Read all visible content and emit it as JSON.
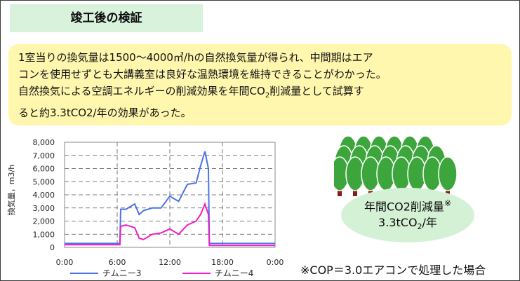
{
  "header": {
    "title": "竣工後の検証"
  },
  "summary": {
    "lines": [
      "1室当りの換気量は1500〜4000㎥/hの自然換気量が得られ、中間期はエア",
      "コンを使用せずとも大講義室は良好な温熱環境を維持できることがわかった。",
      "自然換気による空調エネルギーの削減効果を年間CO",
      "2",
      "削減量として試算す",
      "ると約3.3tCO2/年の効果があった。"
    ]
  },
  "co2_badge": {
    "line1": "年間CO2削減量",
    "mark": "※",
    "value_prefix": "3.3tCO",
    "value_sub": "2",
    "value_suffix": "/年"
  },
  "footnote": "※COP＝3.0エアコンで処理した場合",
  "colors": {
    "chimney3": "#4a73e8",
    "chimney4": "#f01ec8",
    "tree_green": "#3ca63c",
    "trunk": "#8b1a1a"
  },
  "chart_data": {
    "type": "line",
    "ylabel": "換気量，m3/h",
    "xlabel": "",
    "ylim": [
      0,
      8000
    ],
    "yticks": [
      "0",
      "1,000",
      "2,000",
      "3,000",
      "4,000",
      "5,000",
      "6,000",
      "7,000",
      "8,000"
    ],
    "xticks": [
      "0:00",
      "6:00",
      "12:00",
      "18:00",
      "0:00"
    ],
    "grid": true,
    "series": [
      {
        "name": "チムニー3",
        "x": [
          0,
          3,
          6.3,
          6.4,
          7,
          8,
          8.5,
          9,
          10,
          11,
          12,
          13,
          14,
          15,
          15.5,
          16,
          16.4,
          16.5,
          17,
          20,
          24
        ],
        "values": [
          300,
          300,
          300,
          2900,
          2900,
          3300,
          2500,
          2800,
          3000,
          3000,
          3900,
          3500,
          4800,
          4900,
          6200,
          7300,
          6000,
          300,
          300,
          300,
          300
        ]
      },
      {
        "name": "チムニー4",
        "x": [
          0,
          3,
          6.3,
          6.4,
          7,
          8,
          8.5,
          9,
          10,
          11,
          12,
          13,
          14,
          15,
          15.5,
          16,
          16.4,
          16.5,
          17,
          20,
          24
        ],
        "values": [
          200,
          200,
          200,
          1600,
          1700,
          1500,
          700,
          600,
          1000,
          1100,
          1400,
          1000,
          1700,
          2000,
          2500,
          3300,
          2500,
          150,
          150,
          150,
          150
        ]
      }
    ]
  }
}
